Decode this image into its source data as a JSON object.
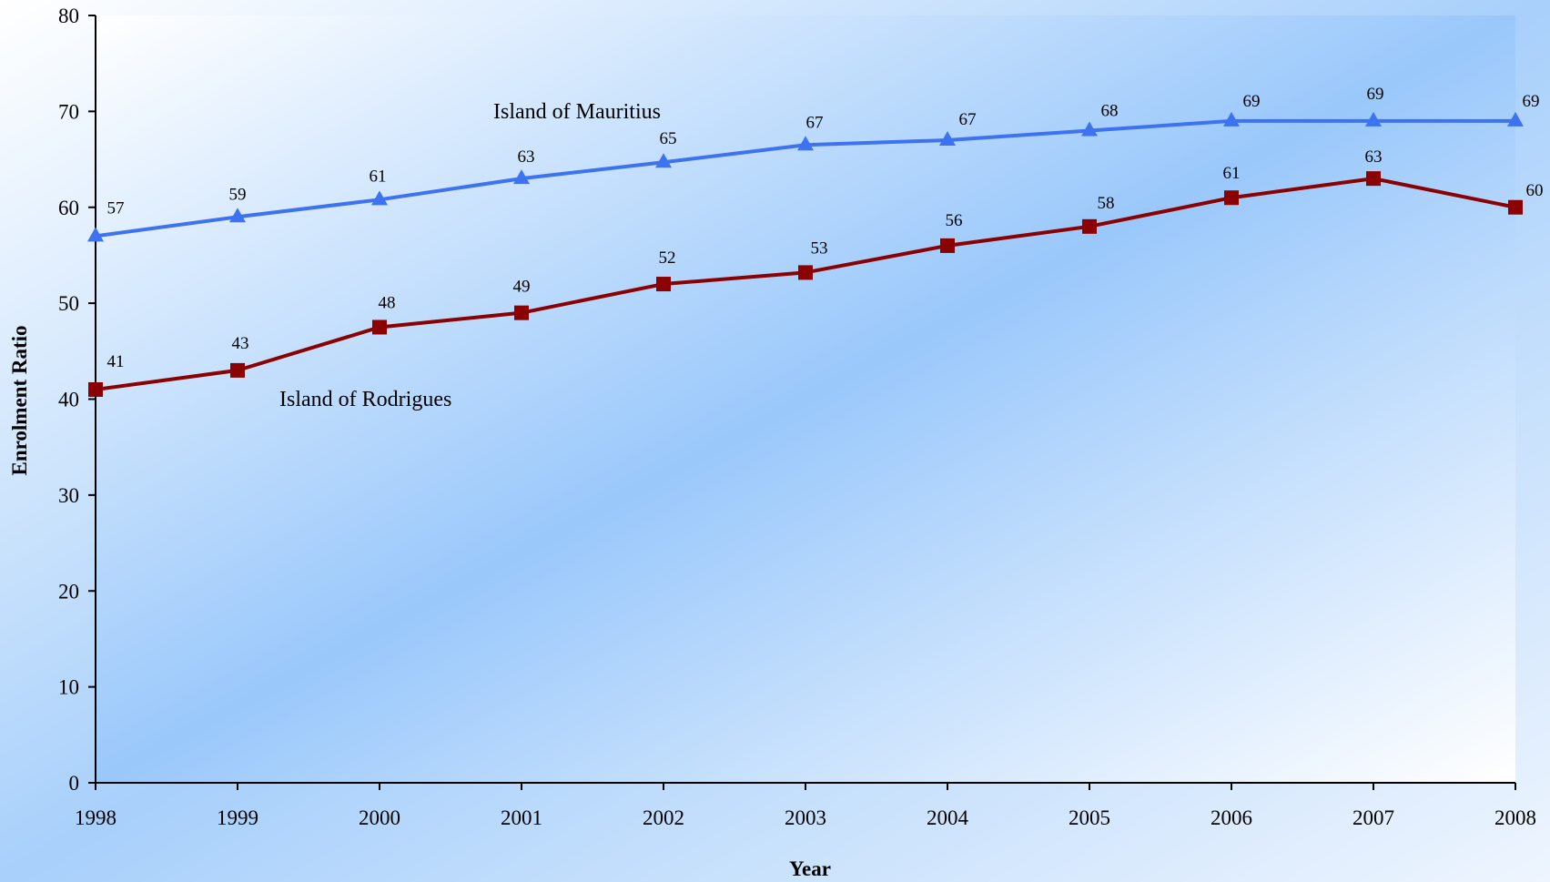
{
  "chart_data": {
    "type": "line",
    "title": "",
    "xlabel": "Year",
    "ylabel": "Enrolment Ratio",
    "categories": [
      "1998",
      "1999",
      "2000",
      "2001",
      "2002",
      "2003",
      "2004",
      "2005",
      "2006",
      "2007",
      "2008"
    ],
    "ylim": [
      0,
      80
    ],
    "yticks": [
      0,
      10,
      20,
      30,
      40,
      50,
      60,
      70,
      80
    ],
    "grid": false,
    "legend": "none",
    "series": [
      {
        "name": "Island of Mauritius",
        "marker": "triangle",
        "color": "#3d72f0",
        "values": [
          57,
          59,
          60.8,
          63,
          64.7,
          66.5,
          67,
          68,
          69,
          69,
          69
        ],
        "labels": [
          "57",
          "59",
          "61",
          "63",
          "65",
          "67",
          "67",
          "68",
          "69",
          "69",
          "69"
        ]
      },
      {
        "name": "Island of Rodrigues",
        "marker": "square",
        "color": "#8b0000",
        "values": [
          41,
          43,
          47.5,
          49,
          52,
          53.2,
          56,
          58,
          61,
          63,
          60
        ],
        "labels": [
          "41",
          "43",
          "48",
          "49",
          "52",
          "53",
          "56",
          "58",
          "61",
          "63",
          "60"
        ]
      }
    ]
  },
  "colors": {
    "background_light": "#ffffff",
    "background_blue": "#9ac8fb",
    "axis": "#000000"
  }
}
